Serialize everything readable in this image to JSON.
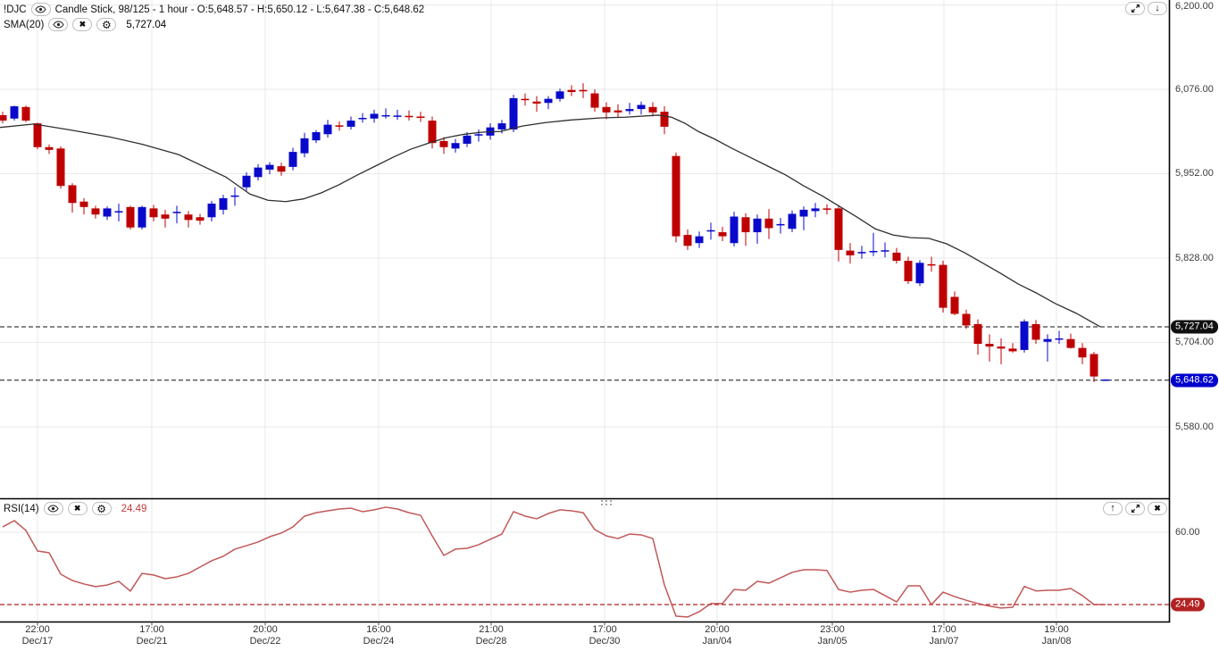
{
  "legend": {
    "symbol": "!DJC",
    "series_info": "Candle Stick, 98/125 - 1 hour - O:5,648.57 - H:5,650.12 - L:5,647.38 - C:5,648.62",
    "sma_label": "SMA(20)",
    "sma_value": "5,727.04",
    "rsi_label": "RSI(14)",
    "rsi_value": "24.49"
  },
  "icons": {
    "visibility": "eye-icon",
    "remove": "x-icon",
    "settings": "gear-icon",
    "maximize": "expand-icon",
    "move_down": "down-arrow-icon",
    "move_up": "up-arrow-icon",
    "close": "x-icon",
    "drag": "drag-dots-icon"
  },
  "colors": {
    "up": "#0909cb",
    "down": "#bf0000",
    "sma": "#2f2f2f",
    "rsi": "#bd4a4a",
    "grid": "#e9e9e9",
    "axis": "#000000",
    "level_main": "#111111",
    "level_rsi": "#b22222",
    "badge_sma_bg": "#111111",
    "badge_price_bg": "#0000cc",
    "badge_rsi_bg": "#b22222"
  },
  "chart_data": [
    {
      "type": "candlestick",
      "title": "!DJC Candle Stick 1 hour with SMA(20)",
      "ylim": [
        5485,
        6207
      ],
      "y_ticks": [
        {
          "v": 6200,
          "label": "6,200.00"
        },
        {
          "v": 6076,
          "label": "6,076.00"
        },
        {
          "v": 5952,
          "label": "5,952.00"
        },
        {
          "v": 5828,
          "label": "5,828.00"
        },
        {
          "v": 5704,
          "label": "5,704.00"
        },
        {
          "v": 5580,
          "label": "5,580.00"
        }
      ],
      "x_labels": [
        {
          "pos": 42,
          "time": "22:00",
          "date": "Dec/17"
        },
        {
          "pos": 170,
          "time": "17:00",
          "date": "Dec/21"
        },
        {
          "pos": 297,
          "time": "20:00",
          "date": "Dec/22"
        },
        {
          "pos": 424,
          "time": "16:00",
          "date": "Dec/24"
        },
        {
          "pos": 550,
          "time": "21:00",
          "date": "Dec/28"
        },
        {
          "pos": 677,
          "time": "17:00",
          "date": "Dec/30"
        },
        {
          "pos": 803,
          "time": "20:00",
          "date": "Jan/04"
        },
        {
          "pos": 932,
          "time": "23:00",
          "date": "Jan/05"
        },
        {
          "pos": 1057,
          "time": "17:00",
          "date": "Jan/07"
        },
        {
          "pos": 1183,
          "time": "19:00",
          "date": "Jan/08"
        }
      ],
      "levels": [
        {
          "value": 5727.04,
          "label": "5,727.04",
          "style": "dashed"
        },
        {
          "value": 5648.62,
          "label": "5,648.62",
          "style": "dashed"
        }
      ],
      "ohlc": [
        [
          6038,
          6043,
          6026,
          6030
        ],
        [
          6033,
          6052,
          6030,
          6051
        ],
        [
          6050,
          6052,
          6028,
          6030
        ],
        [
          6026,
          6027,
          5988,
          5991
        ],
        [
          5991,
          5995,
          5981,
          5987
        ],
        [
          5989,
          5992,
          5930,
          5934
        ],
        [
          5935,
          5938,
          5895,
          5909
        ],
        [
          5911,
          5916,
          5892,
          5903
        ],
        [
          5901,
          5905,
          5886,
          5892
        ],
        [
          5889,
          5904,
          5884,
          5901
        ],
        [
          5895,
          5908,
          5882,
          5897
        ],
        [
          5903,
          5905,
          5870,
          5873
        ],
        [
          5873,
          5905,
          5870,
          5903
        ],
        [
          5901,
          5906,
          5882,
          5888
        ],
        [
          5892,
          5899,
          5873,
          5886
        ],
        [
          5894,
          5905,
          5879,
          5896
        ],
        [
          5892,
          5897,
          5873,
          5884
        ],
        [
          5888,
          5893,
          5877,
          5883
        ],
        [
          5888,
          5912,
          5882,
          5908
        ],
        [
          5899,
          5921,
          5892,
          5916
        ],
        [
          5918,
          5932,
          5905,
          5920
        ],
        [
          5932,
          5954,
          5927,
          5949
        ],
        [
          5947,
          5966,
          5942,
          5961
        ],
        [
          5958,
          5969,
          5951,
          5965
        ],
        [
          5963,
          5968,
          5949,
          5955
        ],
        [
          5962,
          5990,
          5957,
          5984
        ],
        [
          5982,
          6012,
          5976,
          6004
        ],
        [
          6001,
          6016,
          5997,
          6013
        ],
        [
          6010,
          6031,
          6005,
          6024
        ],
        [
          6023,
          6029,
          6015,
          6021
        ],
        [
          6021,
          6036,
          6017,
          6030
        ],
        [
          6032,
          6041,
          6027,
          6034
        ],
        [
          6033,
          6046,
          6027,
          6040
        ],
        [
          6036,
          6048,
          6033,
          6038
        ],
        [
          6036,
          6046,
          6031,
          6037
        ],
        [
          6037,
          6045,
          6030,
          6035
        ],
        [
          6036,
          6043,
          6028,
          6034
        ],
        [
          6030,
          6036,
          5989,
          5997
        ],
        [
          6000,
          6006,
          5981,
          5991
        ],
        [
          5989,
          6003,
          5983,
          5997
        ],
        [
          5996,
          6013,
          5991,
          6008
        ],
        [
          6008,
          6017,
          5999,
          6010
        ],
        [
          6008,
          6026,
          6002,
          6020
        ],
        [
          6017,
          6031,
          6011,
          6026
        ],
        [
          6017,
          6068,
          6013,
          6063
        ],
        [
          6062,
          6070,
          6052,
          6060
        ],
        [
          6058,
          6066,
          6043,
          6055
        ],
        [
          6056,
          6066,
          6047,
          6062
        ],
        [
          6062,
          6077,
          6058,
          6073
        ],
        [
          6075,
          6082,
          6066,
          6072
        ],
        [
          6075,
          6085,
          6063,
          6073
        ],
        [
          6070,
          6076,
          6043,
          6049
        ],
        [
          6050,
          6057,
          6032,
          6042
        ],
        [
          6045,
          6054,
          6034,
          6042
        ],
        [
          6044,
          6056,
          6039,
          6047
        ],
        [
          6047,
          6058,
          6039,
          6053
        ],
        [
          6050,
          6057,
          6036,
          6042
        ],
        [
          6043,
          6051,
          6010,
          6021
        ],
        [
          5978,
          5983,
          5851,
          5860
        ],
        [
          5862,
          5870,
          5840,
          5846
        ],
        [
          5850,
          5867,
          5843,
          5860
        ],
        [
          5867,
          5880,
          5855,
          5869
        ],
        [
          5866,
          5874,
          5853,
          5860
        ],
        [
          5850,
          5896,
          5845,
          5889
        ],
        [
          5888,
          5894,
          5846,
          5866
        ],
        [
          5866,
          5892,
          5849,
          5886
        ],
        [
          5886,
          5900,
          5856,
          5872
        ],
        [
          5876,
          5887,
          5864,
          5878
        ],
        [
          5871,
          5898,
          5866,
          5893
        ],
        [
          5889,
          5904,
          5869,
          5899
        ],
        [
          5897,
          5909,
          5888,
          5901
        ],
        [
          5901,
          5907,
          5892,
          5899
        ],
        [
          5901,
          5906,
          5823,
          5840
        ],
        [
          5839,
          5850,
          5820,
          5832
        ],
        [
          5835,
          5846,
          5827,
          5837
        ],
        [
          5837,
          5865,
          5831,
          5838
        ],
        [
          5838,
          5851,
          5829,
          5839
        ],
        [
          5836,
          5843,
          5820,
          5824
        ],
        [
          5824,
          5830,
          5790,
          5794
        ],
        [
          5791,
          5825,
          5787,
          5821
        ],
        [
          5819,
          5830,
          5808,
          5817
        ],
        [
          5818,
          5824,
          5748,
          5755
        ],
        [
          5771,
          5779,
          5744,
          5746
        ],
        [
          5746,
          5752,
          5724,
          5729
        ],
        [
          5731,
          5738,
          5686,
          5702
        ],
        [
          5702,
          5716,
          5676,
          5698
        ],
        [
          5698,
          5710,
          5672,
          5695
        ],
        [
          5695,
          5703,
          5689,
          5691
        ],
        [
          5693,
          5738,
          5689,
          5735
        ],
        [
          5731,
          5737,
          5702,
          5708
        ],
        [
          5705,
          5716,
          5676,
          5709
        ],
        [
          5708,
          5721,
          5702,
          5710
        ],
        [
          5709,
          5717,
          5695,
          5696
        ],
        [
          5696,
          5703,
          5672,
          5682
        ],
        [
          5687,
          5690,
          5646,
          5654
        ],
        [
          5648.57,
          5650.12,
          5647.38,
          5648.62
        ]
      ],
      "overlays": [
        {
          "name": "SMA(20)",
          "points": [
            [
              0,
              6020
            ],
            [
              38,
              6025
            ],
            [
              80,
              6016
            ],
            [
              123,
              6006
            ],
            [
              160,
              5995
            ],
            [
              200,
              5980
            ],
            [
              253,
              5947
            ],
            [
              280,
              5922
            ],
            [
              300,
              5913
            ],
            [
              320,
              5911
            ],
            [
              340,
              5915
            ],
            [
              360,
              5924
            ],
            [
              380,
              5936
            ],
            [
              400,
              5950
            ],
            [
              420,
              5963
            ],
            [
              440,
              5976
            ],
            [
              460,
              5988
            ],
            [
              480,
              5997
            ],
            [
              500,
              6005
            ],
            [
              520,
              6010
            ],
            [
              540,
              6013
            ],
            [
              560,
              6014
            ],
            [
              585,
              6022
            ],
            [
              610,
              6027
            ],
            [
              640,
              6031
            ],
            [
              673,
              6034
            ],
            [
              700,
              6035
            ],
            [
              737,
              6038
            ],
            [
              752,
              6035
            ],
            [
              767,
              6026
            ],
            [
              782,
              6014
            ],
            [
              800,
              6003
            ],
            [
              820,
              5989
            ],
            [
              840,
              5976
            ],
            [
              860,
              5963
            ],
            [
              880,
              5950
            ],
            [
              900,
              5934
            ],
            [
              920,
              5920
            ],
            [
              940,
              5904
            ],
            [
              960,
              5888
            ],
            [
              980,
              5871
            ],
            [
              1000,
              5862
            ],
            [
              1020,
              5858
            ],
            [
              1040,
              5857
            ],
            [
              1060,
              5849
            ],
            [
              1080,
              5836
            ],
            [
              1100,
              5821
            ],
            [
              1120,
              5806
            ],
            [
              1140,
              5790
            ],
            [
              1160,
              5777
            ],
            [
              1182,
              5761
            ],
            [
              1205,
              5747
            ],
            [
              1232,
              5727.04
            ]
          ]
        }
      ]
    },
    {
      "type": "line",
      "title": "RSI(14)",
      "ylim": [
        16.5,
        75.8
      ],
      "y_ticks": [
        {
          "v": 60,
          "label": "60.00"
        }
      ],
      "levels": [
        {
          "value": 24.49,
          "label": "24.49",
          "style": "dashed"
        }
      ],
      "values": [
        62.6,
        65.7,
        60.9,
        50.8,
        49.9,
        39.4,
        36.3,
        34.6,
        33.3,
        34.1,
        35.9,
        31.1,
        39.8,
        39.0,
        37.2,
        38.1,
        39.8,
        42.9,
        46.0,
        48.2,
        51.7,
        53.4,
        55.2,
        57.8,
        59.6,
        62.6,
        67.9,
        69.6,
        70.5,
        71.4,
        71.8,
        70.1,
        71.0,
        72.3,
        71.4,
        69.6,
        68.3,
        58.2,
        48.6,
        51.7,
        52.1,
        53.9,
        56.5,
        59.1,
        70.1,
        67.9,
        66.6,
        69.2,
        71.0,
        70.5,
        69.6,
        61.3,
        58.2,
        56.9,
        59.1,
        58.7,
        56.9,
        34.1,
        18.8,
        18.4,
        21.0,
        25.0,
        25.0,
        31.9,
        31.5,
        35.9,
        35.0,
        37.6,
        40.3,
        41.6,
        41.6,
        41.2,
        31.9,
        30.6,
        31.5,
        31.9,
        28.9,
        25.8,
        33.7,
        33.7,
        24.5,
        30.6,
        28.4,
        26.6,
        25.0,
        23.7,
        22.8,
        23.2,
        33.4,
        31.2,
        31.5,
        31.5,
        32.4,
        28.9,
        24.5,
        24.49
      ]
    }
  ]
}
